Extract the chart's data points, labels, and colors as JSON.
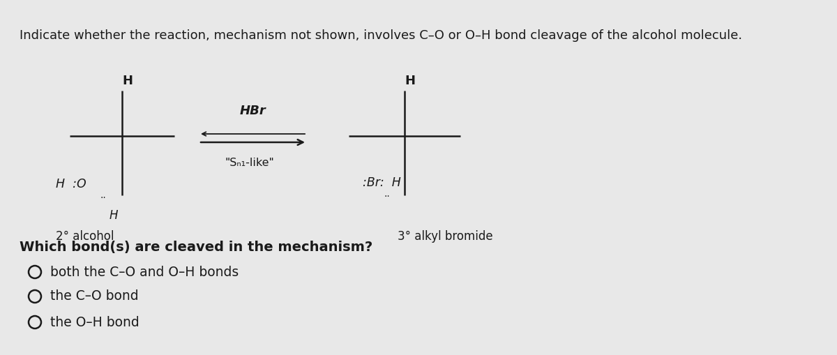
{
  "background_color": "#e8e8e8",
  "title_text": "Indicate whether the reaction, mechanism not shown, involves C–O or O–H bond cleavage of the alcohol molecule.",
  "title_fontsize": 13.0,
  "question_text": "Which bond(s) are cleaved in the mechanism?",
  "options": [
    "both the C–O and O–H bonds",
    "the C–O bond",
    "the O–H bond"
  ],
  "reagent_text": "HBr",
  "mechanism_text": "\"Sₙ₁-like\"",
  "label_left": "2° alcohol",
  "label_right": "3° alkyl bromide",
  "font_color": "#1a1a1a",
  "text_fontsize": 12.0,
  "option_fontsize": 13.5
}
